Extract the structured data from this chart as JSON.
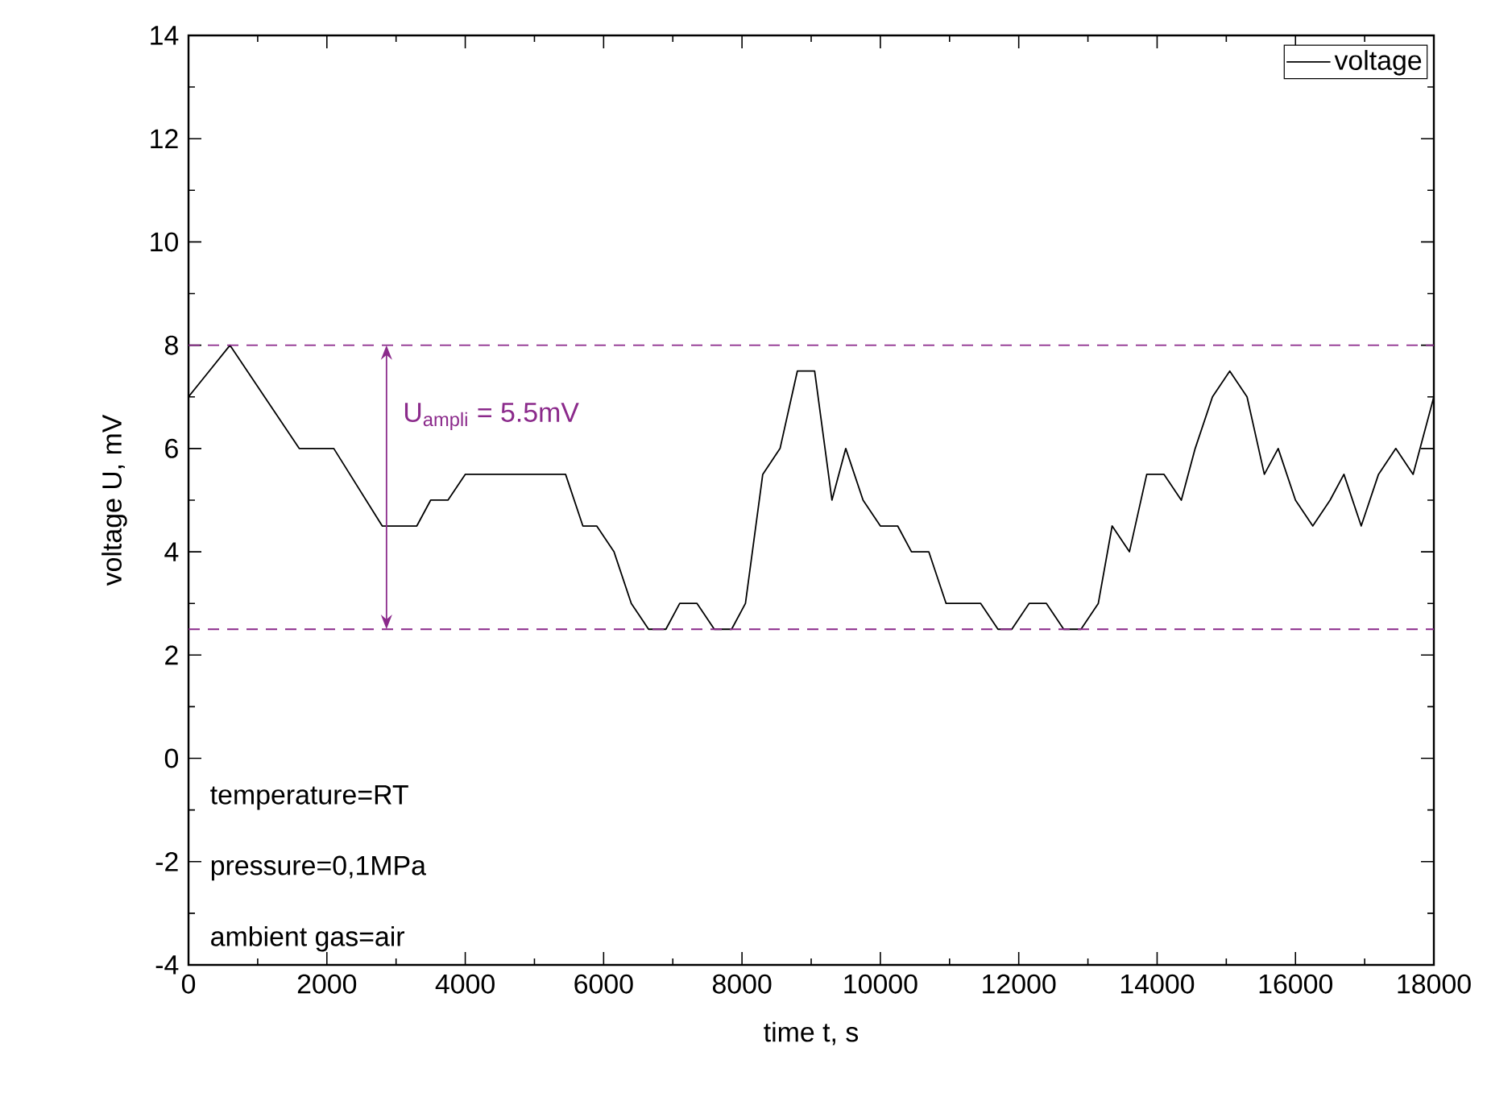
{
  "chart_data": {
    "type": "line",
    "xlabel": "time t, s",
    "ylabel": "voltage U, mV",
    "x": [
      0,
      600,
      1600,
      2100,
      2800,
      3300,
      3500,
      3750,
      4000,
      5450,
      5700,
      5900,
      6150,
      6400,
      6650,
      6900,
      7100,
      7350,
      7600,
      7850,
      8050,
      8300,
      8550,
      8800,
      9050,
      9300,
      9500,
      9750,
      10000,
      10250,
      10450,
      10700,
      10950,
      11450,
      11700,
      11900,
      12150,
      12400,
      12650,
      12900,
      13150,
      13350,
      13600,
      13850,
      14100,
      14350,
      14550,
      14800,
      15050,
      15300,
      15550,
      15750,
      16000,
      16250,
      16500,
      16700,
      16950,
      17200,
      17450,
      17700,
      18000
    ],
    "series": [
      {
        "name": "voltage",
        "color": "#000000",
        "values": [
          7,
          8,
          6,
          6,
          4.5,
          4.5,
          5,
          5,
          5.5,
          5.5,
          4.5,
          4.5,
          4,
          3,
          2.5,
          2.5,
          3,
          3,
          2.5,
          2.5,
          3,
          5.5,
          6,
          7.5,
          7.5,
          5,
          6,
          5,
          4.5,
          4.5,
          4,
          4,
          3,
          3,
          2.5,
          2.5,
          3,
          3,
          2.5,
          2.5,
          3,
          4.5,
          4,
          5.5,
          5.5,
          5,
          6,
          7,
          7.5,
          7,
          5.5,
          6,
          5,
          4.5,
          5,
          5.5,
          4.5,
          5.5,
          6,
          5.5,
          7
        ]
      }
    ],
    "xlim": [
      0,
      18000
    ],
    "ylim": [
      -4,
      14
    ],
    "xticks": [
      0,
      2000,
      4000,
      6000,
      8000,
      10000,
      12000,
      14000,
      16000,
      18000
    ],
    "yticks": [
      -4,
      -2,
      0,
      2,
      4,
      6,
      8,
      10,
      12,
      14
    ],
    "ref_lines": [
      {
        "axis": "y",
        "value": 8,
        "color": "#8b2a8b",
        "line_style": "dashed"
      },
      {
        "axis": "y",
        "value": 2.5,
        "color": "#8b2a8b",
        "line_style": "dashed"
      }
    ],
    "annotations": [
      "U$_{ampli}$ = 5.5mV",
      "temperature=RT",
      "pressure=0,1MPa",
      "ambient gas=air"
    ],
    "legend": "top right",
    "grid": false,
    "marker": "none",
    "line_style": "solid"
  }
}
